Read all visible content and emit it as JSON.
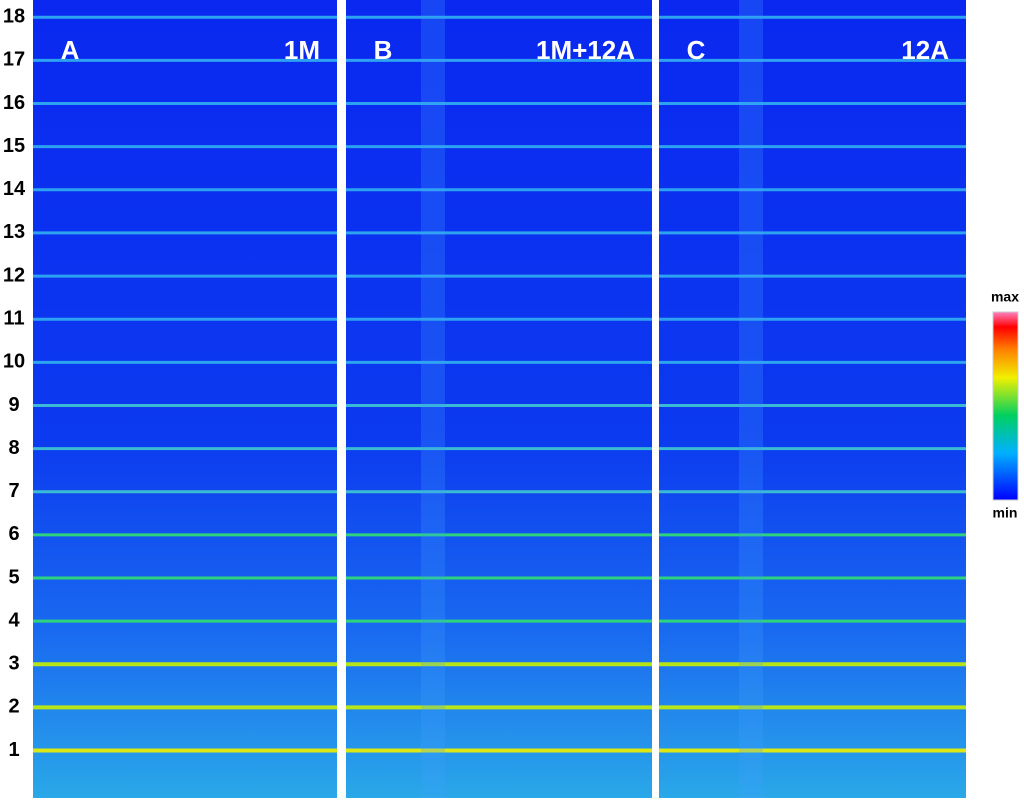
{
  "chart_data": {
    "type": "heatmap",
    "ylim": [
      -0.1,
      18.4
    ],
    "yticks": [
      1,
      2,
      3,
      4,
      5,
      6,
      7,
      8,
      9,
      10,
      11,
      12,
      13,
      14,
      15,
      16,
      17,
      18
    ],
    "panels": [
      {
        "label": "A",
        "title": "1M"
      },
      {
        "label": "B",
        "title": "1M+12A"
      },
      {
        "label": "C",
        "title": "12A"
      }
    ],
    "colorbar": {
      "max_label": "max",
      "min_label": "min"
    }
  }
}
